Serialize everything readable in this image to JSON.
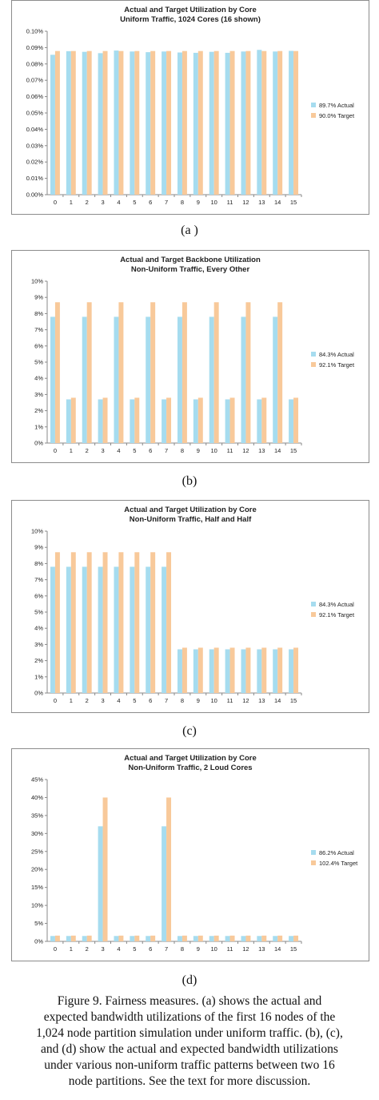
{
  "chart_data": [
    {
      "type": "bar",
      "title": "Actual and Target Utilization by Core",
      "subtitle": "Uniform Traffic, 1024 Cores (16 shown)",
      "categories": [
        "0",
        "1",
        "2",
        "3",
        "4",
        "5",
        "6",
        "7",
        "8",
        "9",
        "10",
        "11",
        "12",
        "13",
        "14",
        "15"
      ],
      "series": [
        {
          "name": "89.7% Actual",
          "color": "#a6dcef",
          "values": [
            0.0856,
            0.0878,
            0.0874,
            0.0866,
            0.0882,
            0.0876,
            0.0872,
            0.0876,
            0.087,
            0.0868,
            0.0874,
            0.0868,
            0.0876,
            0.0886,
            0.0876,
            0.088
          ]
        },
        {
          "name": "90.0% Target",
          "color": "#f8c99a",
          "values": [
            0.0879,
            0.0879,
            0.0879,
            0.0879,
            0.0879,
            0.0879,
            0.0879,
            0.0879,
            0.0879,
            0.0879,
            0.0879,
            0.0879,
            0.0879,
            0.0879,
            0.0879,
            0.0879
          ]
        }
      ],
      "ylim": [
        0,
        0.1
      ],
      "yticks": [
        0,
        0.01,
        0.02,
        0.03,
        0.04,
        0.05,
        0.06,
        0.07,
        0.08,
        0.09,
        0.1
      ],
      "yticklabels": [
        "0.00%",
        "0.01%",
        "0.02%",
        "0.03%",
        "0.04%",
        "0.05%",
        "0.06%",
        "0.07%",
        "0.08%",
        "0.09%",
        "0.10%"
      ],
      "xlabel": "",
      "ylabel": "",
      "legend": "right",
      "grid": false
    },
    {
      "type": "bar",
      "title": "Actual and Target Backbone Utilization",
      "subtitle": "Non-Uniform Traffic, Every Other",
      "categories": [
        "0",
        "1",
        "2",
        "3",
        "4",
        "5",
        "6",
        "7",
        "8",
        "9",
        "10",
        "11",
        "12",
        "13",
        "14",
        "15"
      ],
      "series": [
        {
          "name": "84.3% Actual",
          "color": "#a6dcef",
          "values": [
            7.8,
            2.7,
            7.8,
            2.7,
            7.8,
            2.7,
            7.8,
            2.7,
            7.8,
            2.7,
            7.8,
            2.7,
            7.8,
            2.7,
            7.8,
            2.7
          ]
        },
        {
          "name": "92.1% Target",
          "color": "#f8c99a",
          "values": [
            8.7,
            2.8,
            8.7,
            2.8,
            8.7,
            2.8,
            8.7,
            2.8,
            8.7,
            2.8,
            8.7,
            2.8,
            8.7,
            2.8,
            8.7,
            2.8
          ]
        }
      ],
      "ylim": [
        0,
        10
      ],
      "yticks": [
        0,
        1,
        2,
        3,
        4,
        5,
        6,
        7,
        8,
        9,
        10
      ],
      "yticklabels": [
        "0%",
        "1%",
        "2%",
        "3%",
        "4%",
        "5%",
        "6%",
        "7%",
        "8%",
        "9%",
        "10%"
      ],
      "xlabel": "",
      "ylabel": "",
      "legend": "right",
      "grid": false
    },
    {
      "type": "bar",
      "title": "Actual and Target Utilization by Core",
      "subtitle": "Non-Uniform Traffic, Half and Half",
      "categories": [
        "0",
        "1",
        "2",
        "3",
        "4",
        "5",
        "6",
        "7",
        "8",
        "9",
        "10",
        "11",
        "12",
        "13",
        "14",
        "15"
      ],
      "series": [
        {
          "name": "84.3% Actual",
          "color": "#a6dcef",
          "values": [
            7.8,
            7.8,
            7.8,
            7.8,
            7.8,
            7.8,
            7.8,
            7.8,
            2.7,
            2.7,
            2.7,
            2.7,
            2.7,
            2.7,
            2.7,
            2.7
          ]
        },
        {
          "name": "92.1% Target",
          "color": "#f8c99a",
          "values": [
            8.7,
            8.7,
            8.7,
            8.7,
            8.7,
            8.7,
            8.7,
            8.7,
            2.8,
            2.8,
            2.8,
            2.8,
            2.8,
            2.8,
            2.8,
            2.8
          ]
        }
      ],
      "ylim": [
        0,
        10
      ],
      "yticks": [
        0,
        1,
        2,
        3,
        4,
        5,
        6,
        7,
        8,
        9,
        10
      ],
      "yticklabels": [
        "0%",
        "1%",
        "2%",
        "3%",
        "4%",
        "5%",
        "6%",
        "7%",
        "8%",
        "9%",
        "10%"
      ],
      "xlabel": "",
      "ylabel": "",
      "legend": "right",
      "grid": false
    },
    {
      "type": "bar",
      "title": "Actual and Target Utilization by Core",
      "subtitle": "Non-Uniform Traffic, 2 Loud Cores",
      "categories": [
        "0",
        "1",
        "2",
        "3",
        "4",
        "5",
        "6",
        "7",
        "8",
        "9",
        "10",
        "11",
        "12",
        "13",
        "14",
        "15"
      ],
      "series": [
        {
          "name": "86.2% Actual",
          "color": "#a6dcef",
          "values": [
            1.5,
            1.5,
            1.5,
            32,
            1.5,
            1.5,
            1.5,
            32,
            1.5,
            1.5,
            1.5,
            1.5,
            1.5,
            1.5,
            1.5,
            1.5
          ]
        },
        {
          "name": "102.4% Target",
          "color": "#f8c99a",
          "values": [
            1.6,
            1.6,
            1.6,
            40,
            1.6,
            1.6,
            1.6,
            40,
            1.6,
            1.6,
            1.6,
            1.6,
            1.6,
            1.6,
            1.6,
            1.6
          ]
        }
      ],
      "ylim": [
        0,
        45
      ],
      "yticks": [
        0,
        5,
        10,
        15,
        20,
        25,
        30,
        35,
        40,
        45
      ],
      "yticklabels": [
        "0%",
        "5%",
        "10%",
        "15%",
        "20%",
        "25%",
        "30%",
        "35%",
        "40%",
        "45%"
      ],
      "xlabel": "",
      "ylabel": "",
      "legend": "right",
      "grid": false
    }
  ],
  "sublabels": [
    "(a )",
    "(b)",
    "(c)",
    "(d)"
  ],
  "caption": [
    "Figure 9. Fairness measures.  (a) shows the actual and",
    "expected bandwidth utilizations of the first 16 nodes of the",
    "1,024 node partition simulation under uniform traffic. (b), (c),",
    "and (d) show the actual and expected bandwidth utilizations",
    "under various non-uniform traffic patterns between two 16",
    "node partitions.  See the text for more discussion."
  ]
}
